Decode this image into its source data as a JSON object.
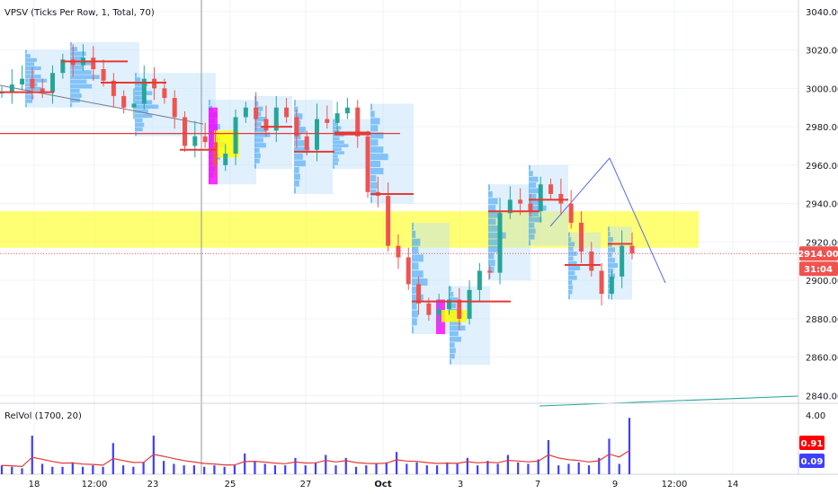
{
  "price_pane": {
    "legend": "VPSV (Ticks Per Row, 1, Total, 70)",
    "y_ticks": [
      3040,
      3020,
      3000,
      2980,
      2960,
      2940,
      2920,
      2900,
      2880,
      2860,
      2840
    ],
    "y_tick_labels": [
      "3040.00",
      "3020.00",
      "3000.00",
      "2980.00",
      "2960.00",
      "2940.00",
      "2920.00",
      "2900.00",
      "2880.00",
      "2860.00",
      "2840.00"
    ],
    "ylim": [
      2836,
      3046
    ],
    "last_price_label": "2914.00",
    "last_price": 2914,
    "countdown_label": "31:04",
    "colors": {
      "up": "#26a69a",
      "down": "#ef5350",
      "poc": "#e53935",
      "highlight": "#ffff00",
      "profile_up": "#2196f3",
      "profile_va": "#ff00ff",
      "profile_bg": "#bbdefb"
    }
  },
  "volume_pane": {
    "legend": "RelVol (1700, 20)",
    "y_ticks": [
      4
    ],
    "y_tick_labels": [
      "4.00"
    ],
    "ylim": [
      0,
      4.6
    ],
    "badge_red_label": "0.91",
    "badge_blue_label": "0.09",
    "colors": {
      "bar": "#3f3fff",
      "avg": "#e53935"
    }
  },
  "x_axis": {
    "labels": [
      "18",
      "12:00",
      "23",
      "25",
      "27",
      "Oct",
      "3",
      "7",
      "9",
      "12:00",
      "14"
    ]
  },
  "chart_data": {
    "type": "line",
    "title": "",
    "series": [
      {
        "values": [
          2998,
          3002,
          3005,
          3000,
          2998,
          3008,
          3015,
          3012,
          3016,
          3010,
          3004,
          2996,
          2990,
          2992,
          3005,
          3000,
          2995,
          2985,
          2970,
          2975,
          2972,
          2960,
          2966,
          2985,
          2990,
          2984,
          2978,
          2990,
          2985,
          2975,
          2968,
          2984,
          2982,
          2987,
          2990,
          2975,
          2946,
          2944,
          2918,
          2912,
          2898,
          2888,
          2882,
          2885,
          2890,
          2880,
          2895,
          2905,
          2904,
          2935,
          2942,
          2940,
          2936,
          2950,
          2945,
          2940,
          2930,
          2915,
          2905,
          2893,
          2902,
          2918,
          2914
        ]
      }
    ],
    "ylim": [
      2836,
      3046
    ],
    "poc_levels": [
      2998,
      3014,
      3003,
      2968,
      2980,
      2967,
      2976,
      2977,
      2945,
      2889,
      2936,
      2942,
      2908,
      2919
    ],
    "highlight_zone": [
      2917,
      2936
    ],
    "relvol": [
      0.6,
      0.5,
      0.4,
      2.6,
      0.7,
      0.5,
      0.5,
      0.8,
      0.5,
      0.6,
      0.5,
      2.1,
      0.6,
      0.5,
      0.8,
      2.6,
      0.9,
      0.7,
      0.6,
      0.6,
      0.5,
      0.6,
      0.5,
      0.6,
      1.4,
      0.9,
      0.7,
      0.6,
      0.6,
      1.1,
      0.6,
      0.8,
      1.3,
      0.6,
      1.1,
      0.5,
      0.6,
      0.7,
      0.8,
      1.5,
      0.7,
      0.8,
      0.6,
      0.6,
      0.8,
      0.7,
      1.1,
      0.6,
      0.9,
      0.7,
      1.3,
      0.8,
      0.7,
      1.0,
      2.3,
      0.6,
      0.7,
      0.8,
      0.6,
      1.1,
      2.4,
      0.7,
      3.8
    ]
  }
}
